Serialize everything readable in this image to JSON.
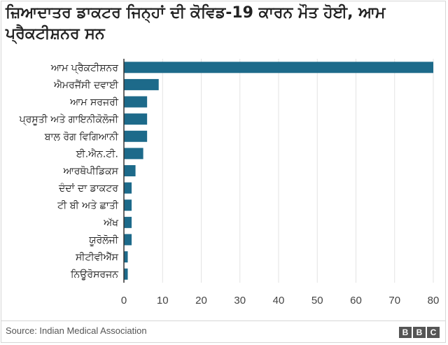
{
  "title": "ਜ਼ਿਆਦਾਤਰ ਡਾਕਟਰ ਜਿਨ੍ਹਾਂ ਦੀ ਕੋਵਿਡ-19 ਕਾਰਨ ਮੌਤ ਹੋਈ, ਆਮ ਪ੍ਰੈਕਟੀਸ਼ਨਰ ਸਨ",
  "source": "Source: Indian Medical Association",
  "logo": [
    "B",
    "B",
    "C"
  ],
  "colors": {
    "bar": "#1d6a8a",
    "grid": "#e3e3e3",
    "axis": "#333333",
    "text": "#222222"
  },
  "chart_data": {
    "type": "bar",
    "orientation": "horizontal",
    "categories": [
      "ਆਮ ਪ੍ਰੈਕਟੀਸ਼ਨਰ",
      "ਐਮਰਜੈਂਸੀ ਦਵਾਈ",
      "ਆਮ ਸਰਜਰੀ",
      "ਪ੍ਰਸੂਤੀ ਅਤੇ ਗਾਇਨੀਕੋਲੋਜੀ",
      "ਬਾਲ ਰੋਗ ਵਿਗਿਆਨੀ",
      "ਈ.ਐਨ.ਟੀ.",
      "ਆਰਥੋਪੀਡਿਕਸ",
      "ਦੰਦਾਂ ਦਾ ਡਾਕਟਰ",
      "ਟੀ ਬੀ ਅਤੇ ਛਾਤੀ",
      "ਅੱਖ",
      "ਯੂਰੋਲੋਜੀ",
      "ਸੀਟੀਵੀਐੱਸ",
      "ਨਿਊਰੋਸਰਜਨ"
    ],
    "values": [
      80,
      9,
      6,
      6,
      6,
      5,
      3,
      2,
      2,
      2,
      2,
      1,
      1
    ],
    "xlim": [
      0,
      80
    ],
    "xticks": [
      0,
      10,
      20,
      30,
      40,
      50,
      60,
      70,
      80
    ],
    "grid": true,
    "xlabel": "",
    "ylabel": ""
  }
}
